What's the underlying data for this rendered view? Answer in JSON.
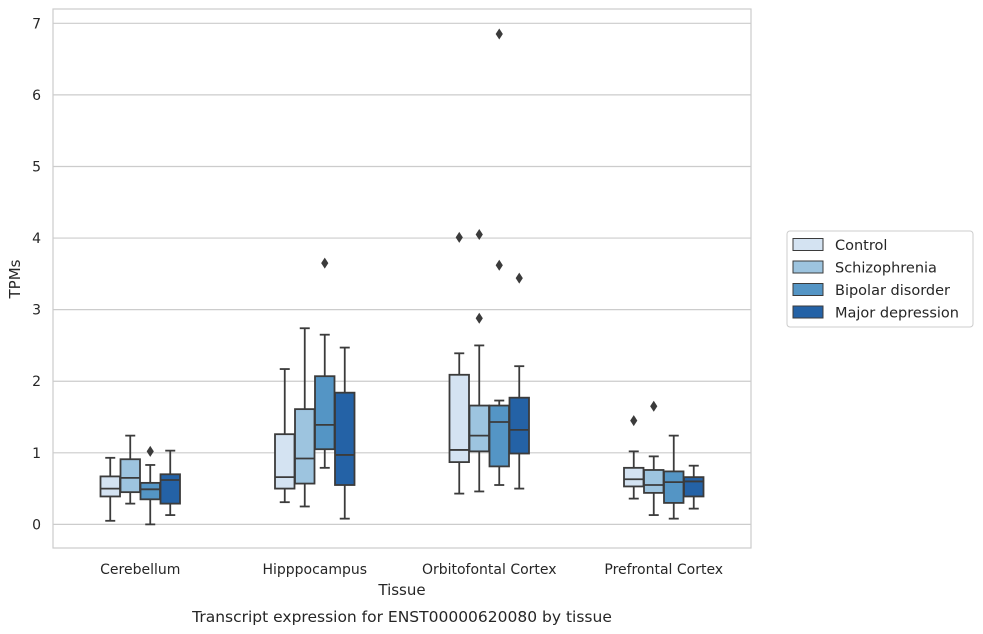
{
  "chart_data": {
    "type": "box",
    "title": "",
    "caption": "Transcript expression for ENST00000620080 by tissue",
    "xlabel": "Tissue",
    "ylabel": "TPMs",
    "ylim": [
      -0.33,
      7.2
    ],
    "yticks": [
      0,
      1,
      2,
      3,
      4,
      5,
      6,
      7
    ],
    "grid": "horizontal",
    "legend_position": "right",
    "categories": [
      "Cerebellum",
      "Hipppocampus",
      "Orbitofontal Cortex",
      "Prefrontal Cortex"
    ],
    "series": [
      {
        "name": "Control",
        "color": "#d4e3f2",
        "boxes": [
          {
            "whislo": 0.05,
            "q1": 0.39,
            "med": 0.5,
            "q3": 0.67,
            "whishi": 0.93,
            "fliers": []
          },
          {
            "whislo": 0.31,
            "q1": 0.5,
            "med": 0.66,
            "q3": 1.26,
            "whishi": 2.17,
            "fliers": []
          },
          {
            "whislo": 0.43,
            "q1": 0.87,
            "med": 1.04,
            "q3": 2.09,
            "whishi": 2.39,
            "fliers": [
              4.01
            ]
          },
          {
            "whislo": 0.36,
            "q1": 0.53,
            "med": 0.63,
            "q3": 0.79,
            "whishi": 1.02,
            "fliers": [
              1.45
            ]
          }
        ]
      },
      {
        "name": "Schizophrenia",
        "color": "#9dc4df",
        "boxes": [
          {
            "whislo": 0.29,
            "q1": 0.45,
            "med": 0.65,
            "q3": 0.91,
            "whishi": 1.24,
            "fliers": []
          },
          {
            "whislo": 0.25,
            "q1": 0.57,
            "med": 0.92,
            "q3": 1.61,
            "whishi": 2.74,
            "fliers": []
          },
          {
            "whislo": 0.46,
            "q1": 1.02,
            "med": 1.24,
            "q3": 1.66,
            "whishi": 2.5,
            "fliers": [
              4.05,
              2.88
            ]
          },
          {
            "whislo": 0.13,
            "q1": 0.44,
            "med": 0.55,
            "q3": 0.76,
            "whishi": 0.95,
            "fliers": [
              1.65
            ]
          }
        ]
      },
      {
        "name": "Bipolar disorder",
        "color": "#5495c5",
        "boxes": [
          {
            "whislo": 0.0,
            "q1": 0.35,
            "med": 0.49,
            "q3": 0.58,
            "whishi": 0.83,
            "fliers": [
              1.02
            ]
          },
          {
            "whislo": 0.79,
            "q1": 1.05,
            "med": 1.39,
            "q3": 2.07,
            "whishi": 2.65,
            "fliers": [
              3.65
            ]
          },
          {
            "whislo": 0.55,
            "q1": 0.81,
            "med": 1.43,
            "q3": 1.66,
            "whishi": 1.73,
            "fliers": [
              6.85,
              3.62
            ]
          },
          {
            "whislo": 0.08,
            "q1": 0.3,
            "med": 0.59,
            "q3": 0.74,
            "whishi": 1.24,
            "fliers": []
          }
        ]
      },
      {
        "name": "Major depression",
        "color": "#2462a6",
        "boxes": [
          {
            "whislo": 0.13,
            "q1": 0.29,
            "med": 0.62,
            "q3": 0.7,
            "whishi": 1.03,
            "fliers": []
          },
          {
            "whislo": 0.08,
            "q1": 0.55,
            "med": 0.97,
            "q3": 1.84,
            "whishi": 2.47,
            "fliers": []
          },
          {
            "whislo": 0.5,
            "q1": 0.99,
            "med": 1.32,
            "q3": 1.77,
            "whishi": 2.21,
            "fliers": [
              3.44
            ]
          },
          {
            "whislo": 0.22,
            "q1": 0.39,
            "med": 0.6,
            "q3": 0.66,
            "whishi": 0.82,
            "fliers": []
          }
        ]
      }
    ]
  }
}
